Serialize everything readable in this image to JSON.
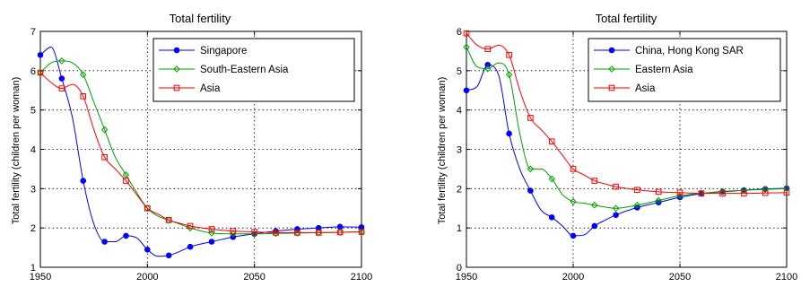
{
  "chart_data": [
    {
      "type": "line",
      "title": "Total fertility",
      "xlabel": "",
      "ylabel": "Total fertility (children per woman)",
      "xlim": [
        1950,
        2100
      ],
      "ylim": [
        1,
        7
      ],
      "xticks": [
        1950,
        2000,
        2050,
        2100
      ],
      "yticks": [
        1,
        2,
        3,
        4,
        5,
        6,
        7
      ],
      "grid": true,
      "legend": "top-right",
      "series": [
        {
          "name": "Singapore",
          "color": "#0000ff",
          "marker": "circle",
          "x": [
            1950,
            1955,
            1960,
            1965,
            1970,
            1975,
            1980,
            1985,
            1990,
            1995,
            2000,
            2005,
            2010,
            2015,
            2020,
            2030,
            2040,
            2050,
            2060,
            2070,
            2080,
            2090,
            2100
          ],
          "y": [
            6.4,
            6.6,
            5.8,
            4.8,
            3.2,
            2.1,
            1.65,
            1.65,
            1.8,
            1.75,
            1.45,
            1.28,
            1.3,
            1.4,
            1.52,
            1.65,
            1.77,
            1.85,
            1.92,
            1.97,
            2.0,
            2.03,
            2.02
          ]
        },
        {
          "name": "South-Eastern Asia",
          "color": "#00a000",
          "marker": "diamond",
          "x": [
            1950,
            1955,
            1960,
            1965,
            1970,
            1975,
            1980,
            1985,
            1990,
            1995,
            2000,
            2005,
            2010,
            2015,
            2020,
            2030,
            2040,
            2050,
            2060,
            2070,
            2080,
            2090,
            2100
          ],
          "y": [
            5.95,
            6.2,
            6.25,
            6.2,
            5.9,
            5.2,
            4.5,
            3.8,
            3.35,
            2.9,
            2.5,
            2.3,
            2.2,
            2.1,
            2.0,
            1.87,
            1.85,
            1.85,
            1.86,
            1.87,
            1.88,
            1.89,
            1.9
          ]
        },
        {
          "name": "Asia",
          "color": "#ff0000",
          "marker": "square",
          "x": [
            1950,
            1955,
            1960,
            1965,
            1970,
            1975,
            1980,
            1985,
            1990,
            1995,
            2000,
            2005,
            2010,
            2015,
            2020,
            2030,
            2040,
            2050,
            2060,
            2070,
            2080,
            2090,
            2100
          ],
          "y": [
            5.95,
            5.7,
            5.55,
            5.65,
            5.35,
            4.5,
            3.8,
            3.5,
            3.2,
            2.85,
            2.5,
            2.35,
            2.2,
            2.12,
            2.05,
            1.97,
            1.92,
            1.9,
            1.88,
            1.88,
            1.88,
            1.89,
            1.9
          ]
        }
      ]
    },
    {
      "type": "line",
      "title": "Total fertility",
      "xlabel": "",
      "ylabel": "Total fertility (children per woman)",
      "xlim": [
        1950,
        2100
      ],
      "ylim": [
        0,
        6
      ],
      "xticks": [
        1950,
        2000,
        2050,
        2100
      ],
      "yticks": [
        0,
        1,
        2,
        3,
        4,
        5,
        6
      ],
      "grid": true,
      "legend": "top-right",
      "series": [
        {
          "name": "China, Hong Kong SAR",
          "color": "#0000ff",
          "marker": "circle",
          "x": [
            1950,
            1955,
            1960,
            1965,
            1970,
            1975,
            1980,
            1985,
            1990,
            1995,
            2000,
            2005,
            2010,
            2015,
            2020,
            2030,
            2040,
            2050,
            2060,
            2070,
            2080,
            2090,
            2100
          ],
          "y": [
            4.5,
            4.6,
            5.15,
            4.9,
            3.4,
            2.5,
            1.95,
            1.45,
            1.27,
            1.05,
            0.8,
            0.82,
            1.05,
            1.2,
            1.33,
            1.52,
            1.65,
            1.78,
            1.87,
            1.92,
            1.96,
            1.99,
            2.01
          ]
        },
        {
          "name": "Eastern Asia",
          "color": "#00a000",
          "marker": "diamond",
          "x": [
            1950,
            1955,
            1960,
            1965,
            1970,
            1975,
            1980,
            1985,
            1990,
            1995,
            2000,
            2005,
            2010,
            2015,
            2020,
            2030,
            2040,
            2050,
            2060,
            2070,
            2080,
            2090,
            2100
          ],
          "y": [
            5.6,
            5.1,
            5.05,
            5.2,
            4.9,
            3.4,
            2.5,
            2.5,
            2.25,
            1.85,
            1.67,
            1.63,
            1.58,
            1.53,
            1.5,
            1.58,
            1.7,
            1.82,
            1.88,
            1.93,
            1.96,
            1.98,
            2.0
          ]
        },
        {
          "name": "Asia",
          "color": "#ff0000",
          "marker": "square",
          "x": [
            1950,
            1955,
            1960,
            1965,
            1970,
            1975,
            1980,
            1985,
            1990,
            1995,
            2000,
            2005,
            2010,
            2015,
            2020,
            2030,
            2040,
            2050,
            2060,
            2070,
            2080,
            2090,
            2100
          ],
          "y": [
            5.95,
            5.65,
            5.55,
            5.65,
            5.4,
            4.5,
            3.8,
            3.5,
            3.2,
            2.85,
            2.5,
            2.35,
            2.2,
            2.12,
            2.05,
            1.97,
            1.92,
            1.9,
            1.88,
            1.88,
            1.88,
            1.89,
            1.9
          ]
        }
      ]
    }
  ]
}
